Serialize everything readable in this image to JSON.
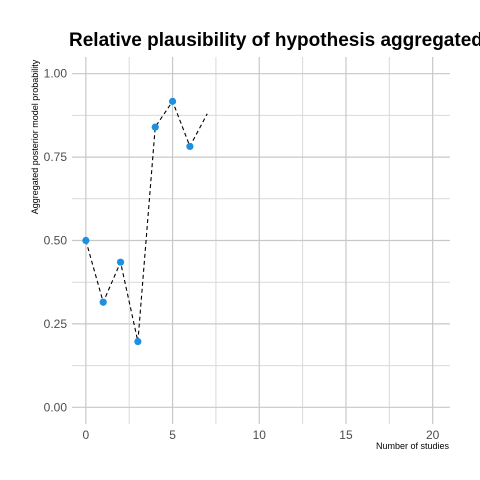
{
  "chart_data": {
    "type": "line",
    "title": "Relative plausibility of hypothesis aggregated over studies",
    "xlabel": "Number of studies",
    "ylabel": "Aggregated posterior model probability",
    "xlim": [
      -0.8,
      21
    ],
    "ylim": [
      -0.05,
      1.05
    ],
    "xticks": [
      0,
      5,
      10,
      15,
      20
    ],
    "xtick_labels": [
      "0",
      "5",
      "10",
      "15",
      "20"
    ],
    "yticks": [
      0.0,
      0.25,
      0.5,
      0.75,
      1.0
    ],
    "ytick_labels": [
      "0.00",
      "0.25",
      "0.50",
      "0.75",
      "1.00"
    ],
    "grid": true,
    "legend": "none",
    "series": [
      {
        "x": [
          0,
          1,
          2,
          3,
          4,
          5,
          6,
          7
        ],
        "values": [
          0.5,
          0.315,
          0.435,
          0.197,
          0.84,
          0.917,
          0.782,
          0.88
        ],
        "markers": [
          true,
          true,
          true,
          true,
          true,
          true,
          true,
          false
        ],
        "line_style": "dashed",
        "line_color": "#000000",
        "marker_color": "#1e90e0"
      }
    ]
  }
}
